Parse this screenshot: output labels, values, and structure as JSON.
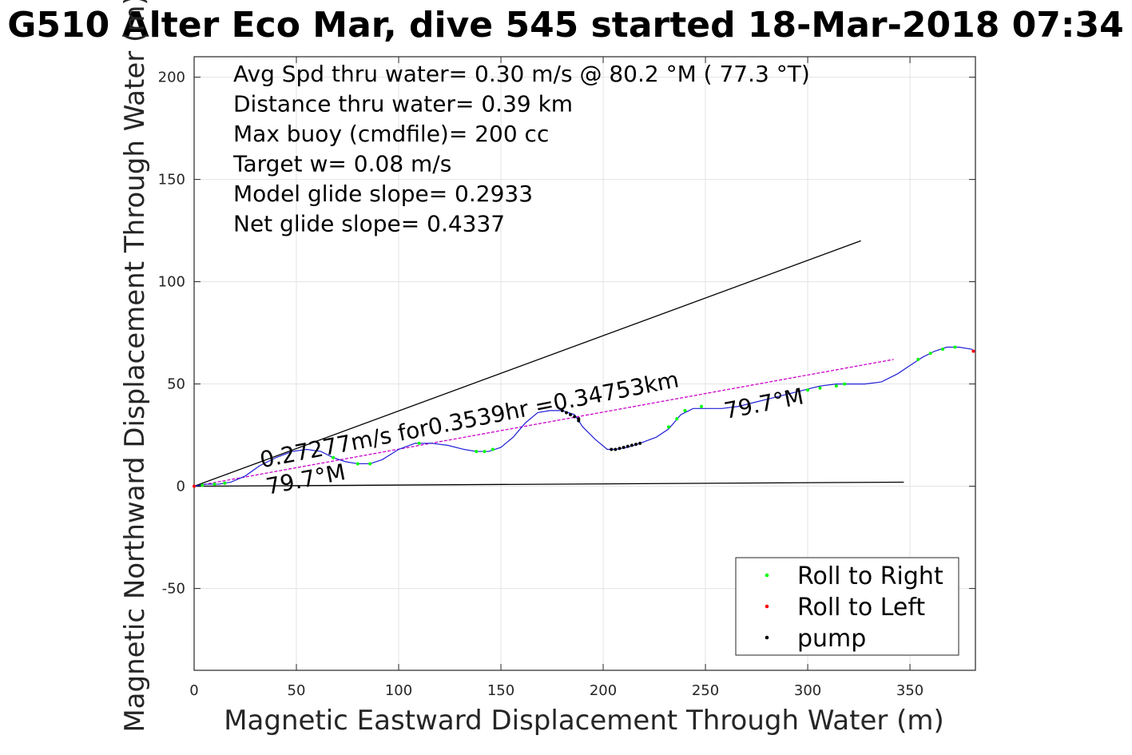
{
  "chart_data": {
    "type": "line",
    "title": "G510 Alter Eco Mar, dive 545 started 18-Mar-2018 07:34",
    "xlabel": "Magnetic Eastward Displacement Through Water (m)",
    "ylabel": "Magnetic Northward Displacement Through Water (m)",
    "xlim": [
      0,
      382
    ],
    "ylim": [
      -90,
      210
    ],
    "xticks": [
      0,
      50,
      100,
      150,
      200,
      250,
      300,
      350
    ],
    "yticks": [
      -50,
      0,
      50,
      100,
      150,
      200
    ],
    "xtick_labels": [
      "0",
      "50",
      "100",
      "150",
      "200",
      "250",
      "300",
      "350"
    ],
    "ytick_labels": [
      "-50",
      "0",
      "50",
      "100",
      "150",
      "200"
    ],
    "grid": true,
    "legend_position": "bottom-right",
    "info_lines": [
      "Avg Spd thru water=  0.30 m/s @  80.2 °M ( 77.3 °T)",
      "Distance thru water=  0.39 km",
      "Max buoy (cmdfile)= 200 cc",
      "Target w= 0.08 m/s",
      "Model glide slope= 0.2933",
      "Net glide slope= 0.4337"
    ],
    "annotations": [
      {
        "text": "0.27277m/s for0.3539hr =0.34753km",
        "x": 33,
        "y": 9,
        "rotation_deg": -11
      },
      {
        "text": "79.7°M",
        "x": 36,
        "y": -4,
        "rotation_deg": -11
      },
      {
        "text": "79.7°M",
        "x": 260,
        "y": 33,
        "rotation_deg": -11
      }
    ],
    "reference_lines": [
      {
        "name": "model glide slope line",
        "color": "#000000",
        "x": [
          0,
          326
        ],
        "y": [
          0,
          120
        ]
      },
      {
        "name": "depth-averaged current line",
        "color": "#000000",
        "x": [
          0,
          347
        ],
        "y": [
          0,
          2
        ]
      },
      {
        "name": "net track line",
        "color": "#cc00cc",
        "x": [
          0,
          342
        ],
        "y": [
          0,
          62
        ]
      }
    ],
    "series": [
      {
        "name": "track",
        "color": "#1f1fd6",
        "x": [
          0,
          6,
          12,
          18,
          25,
          32,
          40,
          48,
          55,
          62,
          68,
          74,
          80,
          86,
          92,
          100,
          108,
          116,
          124,
          132,
          138,
          144,
          150,
          156,
          162,
          168,
          174,
          180,
          186,
          190,
          196,
          202,
          206,
          212,
          218,
          226,
          232,
          238,
          244,
          250,
          258,
          266,
          274,
          282,
          290,
          298,
          306,
          314,
          320,
          328,
          336,
          344,
          350,
          356,
          362,
          368,
          374,
          380,
          382
        ],
        "y": [
          0,
          1,
          1,
          2,
          5,
          10,
          14,
          17,
          18,
          17,
          14,
          12,
          11,
          11,
          13,
          18,
          21,
          21,
          20,
          18,
          17,
          17,
          19,
          24,
          31,
          36,
          37,
          37,
          35,
          29,
          23,
          18,
          18,
          19,
          21,
          24,
          28,
          35,
          38,
          38,
          38,
          39,
          41,
          43,
          45,
          47,
          49,
          50,
          50,
          50,
          51,
          55,
          59,
          63,
          66,
          68,
          68,
          67,
          66
        ]
      },
      {
        "name": "Roll to Right",
        "color": "#00ff00",
        "x": [
          4,
          10,
          15,
          68,
          80,
          86,
          110,
          138,
          142,
          146,
          232,
          236,
          240,
          248,
          300,
          306,
          314,
          318,
          354,
          360,
          366,
          372
        ],
        "y": [
          0.5,
          1,
          1.5,
          14,
          11,
          11,
          21,
          17,
          17,
          18,
          29,
          33,
          37,
          39,
          47,
          48,
          49,
          50,
          62,
          65,
          67,
          68
        ]
      },
      {
        "name": "Roll to Left",
        "color": "#ff0000",
        "x": [
          0,
          381
        ],
        "y": [
          0,
          66
        ]
      },
      {
        "name": "pump",
        "color": "#000000",
        "x": [
          180,
          182,
          184,
          186,
          188,
          188,
          204,
          206,
          208,
          210,
          212,
          214,
          216,
          218
        ],
        "y": [
          37,
          36,
          35,
          34,
          33,
          32,
          18,
          18,
          18.5,
          19,
          19.5,
          20,
          20.5,
          21
        ]
      }
    ],
    "legend": [
      "Roll to Right",
      "Roll to Left",
      "pump"
    ]
  }
}
